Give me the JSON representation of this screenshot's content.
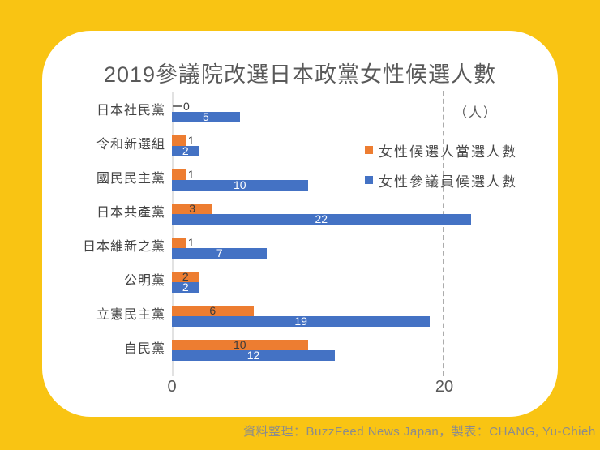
{
  "title": "2019參議院改選日本政黨女性候選人數",
  "unit_label": "（人）",
  "footer": "資料整理：BuzzFeed News Japan，製表：CHANG, Yu-Chieh",
  "axis": {
    "ticks": [
      "0",
      "20"
    ]
  },
  "legend": {
    "items": [
      {
        "label": "女性候選人當選人數",
        "color": "#ED7D31"
      },
      {
        "label": "女性參議員候選人數",
        "color": "#4472C4"
      }
    ]
  },
  "colors": {
    "background": "#F9C413",
    "card": "#FFFFFF",
    "orange": "#ED7D31",
    "blue": "#4472C4",
    "title_text": "#595959",
    "label_text": "#434343",
    "axis_line": "#E2E2E2",
    "gridline": "#ACACAC",
    "footer_text": "#8C8C8C"
  },
  "chart_data": {
    "type": "bar",
    "orientation": "horizontal",
    "title": "2019參議院改選日本政黨女性候選人數",
    "unit": "人",
    "categories": [
      "日本社民黨",
      "令和新選組",
      "國民民主黨",
      "日本共產黨",
      "日本維新之黨",
      "公明黨",
      "立憲民主黨",
      "自民黨"
    ],
    "series": [
      {
        "name": "女性候選人當選人數",
        "color": "#ED7D31",
        "values": [
          0,
          1,
          1,
          3,
          1,
          2,
          6,
          10
        ]
      },
      {
        "name": "女性參議員候選人數",
        "color": "#4472C4",
        "values": [
          5,
          2,
          10,
          22,
          7,
          2,
          19,
          12
        ]
      }
    ],
    "x_ticks": [
      0,
      20
    ],
    "xlim": [
      0,
      22.5
    ],
    "gridlines": {
      "x": [
        20
      ],
      "style": "dashed"
    },
    "legend_position": "upper-right-inside",
    "value_labels": "shown on every bar"
  }
}
